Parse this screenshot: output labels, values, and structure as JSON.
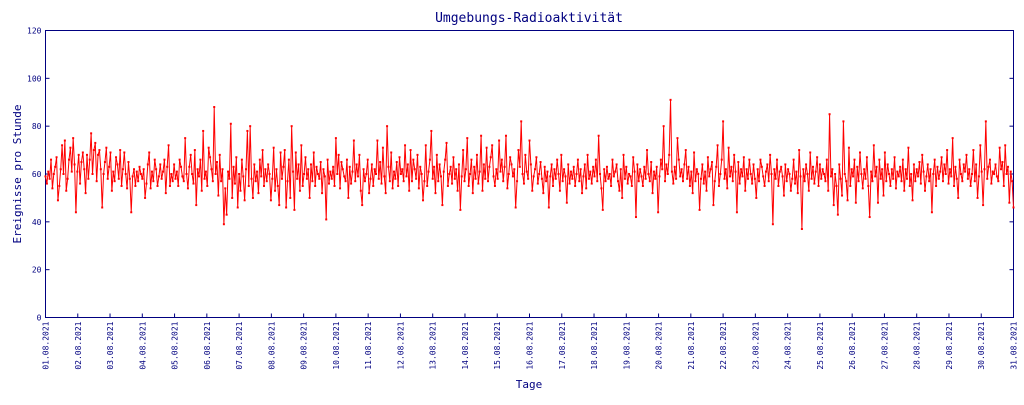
{
  "chart_data": {
    "type": "line",
    "title": "Umgebungs-Radioaktivität",
    "xlabel": "Tage",
    "ylabel": "Ereignisse pro Stunde",
    "ylim": [
      0,
      120
    ],
    "yticks": [
      0,
      20,
      40,
      60,
      80,
      100,
      120
    ],
    "xlim": [
      "01.08.2021",
      "31.08.2021"
    ],
    "xticks": [
      "01.08.2021",
      "02.08.2021",
      "03.08.2021",
      "04.08.2021",
      "05.08.2021",
      "06.08.2021",
      "07.08.2021",
      "08.08.2021",
      "09.08.2021",
      "10.08.2021",
      "11.08.2021",
      "12.08.2021",
      "13.08.2021",
      "14.08.2021",
      "15.08.2021",
      "16.08.2021",
      "17.08.2021",
      "18.08.2021",
      "19.08.2021",
      "20.08.2021",
      "21.08.2021",
      "22.08.2021",
      "23.08.2021",
      "24.08.2021",
      "25.08.2021",
      "26.08.2021",
      "27.08.2021",
      "28.08.2021",
      "29.08.2021",
      "30.08.2021",
      "31.08.2021"
    ],
    "grid": false,
    "legend": "none",
    "line_color": "#ff0000",
    "axis_color": "#000080",
    "series": [
      {
        "x_start": "01.08.2021 00:00",
        "interval_hours": 1,
        "values": [
          59,
          56,
          61,
          58,
          66,
          54,
          60,
          63,
          67,
          49,
          55,
          62,
          72,
          60,
          74,
          53,
          58,
          66,
          71,
          61,
          75,
          64,
          44,
          61,
          68,
          56,
          65,
          69,
          62,
          52,
          68,
          58,
          66,
          77,
          60,
          70,
          73,
          57,
          68,
          70,
          62,
          46,
          60,
          65,
          71,
          58,
          63,
          69,
          53,
          61,
          57,
          67,
          64,
          58,
          70,
          55,
          62,
          69,
          60,
          54,
          65,
          58,
          44,
          59,
          62,
          55,
          61,
          57,
          63,
          60,
          58,
          62,
          50,
          56,
          64,
          69,
          54,
          61,
          57,
          66,
          62,
          55,
          59,
          64,
          58,
          61,
          66,
          52,
          63,
          72,
          55,
          60,
          57,
          64,
          58,
          61,
          55,
          66,
          63,
          59,
          57,
          75,
          60,
          54,
          63,
          68,
          60,
          56,
          70,
          47,
          62,
          59,
          66,
          53,
          78,
          58,
          61,
          55,
          71,
          67,
          62,
          57,
          88,
          60,
          65,
          51,
          68,
          57,
          62,
          39,
          54,
          43,
          61,
          58,
          81,
          50,
          63,
          56,
          67,
          46,
          60,
          53,
          66,
          59,
          49,
          62,
          78,
          55,
          80,
          58,
          50,
          64,
          57,
          61,
          52,
          66,
          59,
          70,
          55,
          62,
          57,
          64,
          60,
          49,
          58,
          71,
          53,
          62,
          55,
          47,
          69,
          58,
          63,
          70,
          46,
          57,
          66,
          50,
          80,
          61,
          45,
          69,
          58,
          64,
          53,
          72,
          55,
          60,
          67,
          58,
          62,
          50,
          64,
          57,
          69,
          55,
          63,
          60,
          58,
          65,
          52,
          62,
          59,
          41,
          66,
          56,
          61,
          58,
          63,
          55,
          75,
          60,
          68,
          54,
          65,
          62,
          59,
          57,
          66,
          50,
          63,
          56,
          61,
          74,
          57,
          64,
          59,
          68,
          53,
          47,
          62,
          57,
          60,
          66,
          52,
          58,
          64,
          55,
          62,
          60,
          74,
          58,
          65,
          56,
          71,
          59,
          52,
          80,
          63,
          57,
          69,
          54,
          61,
          58,
          65,
          55,
          67,
          60,
          62,
          57,
          72,
          59,
          64,
          53,
          70,
          57,
          66,
          62,
          58,
          68,
          54,
          63,
          60,
          49,
          57,
          72,
          55,
          61,
          66,
          78,
          58,
          63,
          52,
          68,
          57,
          64,
          59,
          47,
          61,
          66,
          73,
          55,
          60,
          63,
          56,
          67,
          58,
          62,
          53,
          64,
          45,
          59,
          70,
          57,
          62,
          75,
          55,
          60,
          66,
          52,
          63,
          58,
          68,
          56,
          61,
          76,
          53,
          64,
          58,
          71,
          57,
          63,
          67,
          72,
          59,
          55,
          62,
          58,
          74,
          61,
          66,
          57,
          63,
          76,
          54,
          60,
          67,
          64,
          59,
          62,
          46,
          57,
          70,
          63,
          82,
          60,
          56,
          68,
          61,
          58,
          74,
          64,
          53,
          59,
          62,
          67,
          56,
          60,
          65,
          58,
          52,
          63,
          57,
          61,
          46,
          59,
          64,
          55,
          62,
          58,
          66,
          60,
          53,
          68,
          57,
          62,
          59,
          48,
          64,
          56,
          61,
          58,
          63,
          55,
          60,
          66,
          57,
          62,
          52,
          59,
          64,
          54,
          68,
          58,
          61,
          56,
          63,
          59,
          66,
          57,
          76,
          60,
          54,
          45,
          62,
          57,
          63,
          58,
          60,
          55,
          66,
          59,
          61,
          64,
          57,
          53,
          62,
          50,
          68,
          58,
          63,
          56,
          60,
          59,
          55,
          67,
          61,
          42,
          64,
          57,
          62,
          59,
          55,
          63,
          58,
          70,
          60,
          57,
          65,
          52,
          61,
          58,
          63,
          44,
          59,
          66,
          62,
          80,
          57,
          64,
          60,
          68,
          91,
          61,
          56,
          63,
          58,
          75,
          66,
          59,
          62,
          57,
          64,
          70,
          58,
          63,
          55,
          61,
          52,
          69,
          57,
          62,
          60,
          45,
          58,
          64,
          56,
          61,
          53,
          67,
          59,
          62,
          65,
          47,
          57,
          63,
          72,
          55,
          60,
          66,
          82,
          58,
          62,
          54,
          71,
          59,
          63,
          57,
          68,
          61,
          44,
          65,
          56,
          62,
          59,
          67,
          53,
          62,
          58,
          66,
          60,
          56,
          64,
          58,
          50,
          62,
          57,
          66,
          63,
          59,
          55,
          61,
          64,
          57,
          68,
          60,
          39,
          62,
          58,
          66,
          55,
          61,
          63,
          59,
          51,
          64,
          57,
          62,
          60,
          53,
          58,
          66,
          56,
          61,
          52,
          70,
          59,
          37,
          62,
          57,
          64,
          60,
          53,
          69,
          58,
          63,
          56,
          61,
          67,
          55,
          64,
          58,
          62,
          60,
          57,
          66,
          53,
          85,
          59,
          62,
          47,
          60,
          55,
          43,
          64,
          58,
          51,
          82,
          60,
          57,
          49,
          71,
          55,
          62,
          59,
          66,
          48,
          63,
          57,
          69,
          60,
          54,
          62,
          58,
          67,
          55,
          42,
          61,
          57,
          72,
          59,
          63,
          48,
          66,
          58,
          62,
          51,
          69,
          57,
          64,
          60,
          55,
          62,
          58,
          67,
          54,
          61,
          59,
          63,
          57,
          66,
          53,
          62,
          58,
          71,
          55,
          60,
          49,
          64,
          57,
          62,
          59,
          65,
          56,
          68,
          61,
          53,
          59,
          64,
          57,
          62,
          44,
          60,
          66,
          55,
          63,
          58,
          61,
          67,
          57,
          64,
          60,
          70,
          56,
          62,
          59,
          75,
          55,
          63,
          58,
          50,
          66,
          60,
          57,
          64,
          61,
          68,
          58,
          62,
          55,
          60,
          70,
          57,
          64,
          50,
          59,
          72,
          61,
          47,
          62,
          82,
          58,
          63,
          66,
          56,
          61,
          60,
          64,
          59,
          57,
          71,
          62,
          65,
          55,
          72,
          60,
          63,
          48,
          61,
          57,
          46
        ]
      }
    ]
  }
}
